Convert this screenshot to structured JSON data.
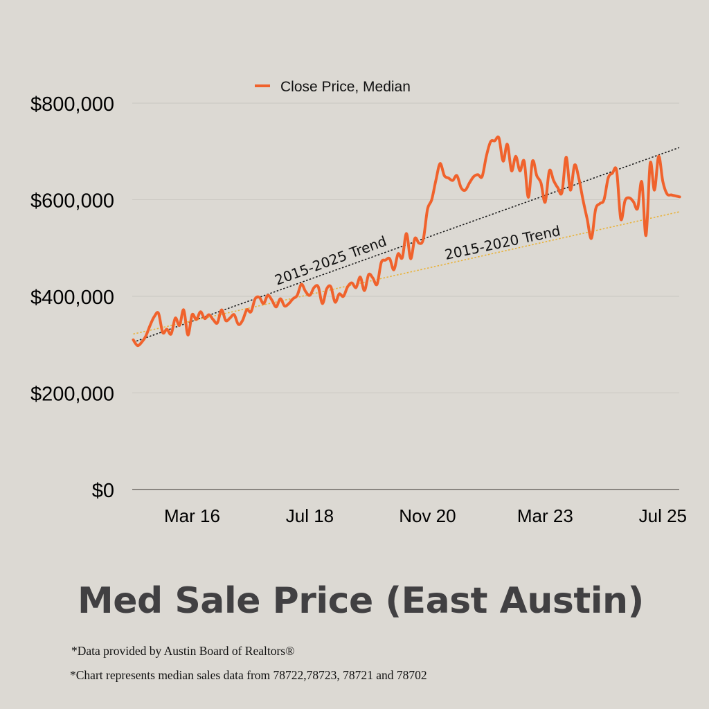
{
  "title": "Med Sale Price (East Austin)",
  "footnotes": [
    "*Data provided by Austin Board of Realtors®",
    "*Chart represents median sales data from 78722,78723, 78721 and 78702"
  ],
  "colors": {
    "background": "#dcd9d3",
    "series": "#f0622c",
    "trend_2015_2025": "#1a1a1a",
    "trend_2015_2020": "#e8b23a",
    "gridline": "#c9c6c0",
    "axis": "#6e6b66",
    "title": "#414042"
  },
  "chart_data": {
    "type": "line",
    "title": "Med Sale Price (East Austin)",
    "xlabel": "",
    "ylabel": "",
    "x_start": "Jan 2015",
    "x_end": "Jul 2025",
    "x_interval": "monthly",
    "ylim": [
      0,
      800000
    ],
    "yticks": [
      0,
      200000,
      400000,
      600000,
      800000
    ],
    "ytick_labels": [
      "$0",
      "$200,000",
      "$400,000",
      "$600,000",
      "$800,000"
    ],
    "xticks": [
      {
        "label": "Mar 16",
        "month_index": 14
      },
      {
        "label": "Jul 18",
        "month_index": 42
      },
      {
        "label": "Nov 20",
        "month_index": 70
      },
      {
        "label": "Mar 23",
        "month_index": 98
      },
      {
        "label": "Jul 25",
        "month_index": 126
      }
    ],
    "grid": true,
    "legend": {
      "position": "top-center",
      "entries": [
        "Close Price, Median"
      ]
    },
    "series": [
      {
        "name": "Close Price, Median",
        "values": [
          310000,
          298000,
          305000,
          318000,
          340000,
          358000,
          365000,
          325000,
          332000,
          322000,
          355000,
          340000,
          372000,
          320000,
          362000,
          352000,
          368000,
          354000,
          362000,
          352000,
          345000,
          372000,
          350000,
          355000,
          362000,
          342000,
          350000,
          372000,
          368000,
          395000,
          398000,
          385000,
          402000,
          392000,
          378000,
          395000,
          380000,
          385000,
          395000,
          402000,
          425000,
          410000,
          402000,
          418000,
          420000,
          385000,
          415000,
          420000,
          388000,
          405000,
          400000,
          420000,
          428000,
          418000,
          440000,
          412000,
          445000,
          438000,
          425000,
          470000,
          475000,
          478000,
          455000,
          488000,
          480000,
          530000,
          478000,
          520000,
          510000,
          518000,
          580000,
          600000,
          640000,
          675000,
          650000,
          645000,
          640000,
          650000,
          625000,
          620000,
          635000,
          648000,
          652000,
          648000,
          690000,
          720000,
          722000,
          728000,
          680000,
          715000,
          660000,
          690000,
          660000,
          680000,
          605000,
          680000,
          650000,
          635000,
          595000,
          660000,
          640000,
          625000,
          615000,
          688000,
          620000,
          672000,
          645000,
          600000,
          560000,
          520000,
          580000,
          592000,
          600000,
          645000,
          655000,
          660000,
          560000,
          598000,
          604000,
          596000,
          582000,
          637000,
          526000,
          676000,
          620000,
          690000,
          638000,
          612000,
          610000,
          608000,
          606000
        ]
      }
    ],
    "trendlines": [
      {
        "name": "2015-2025 Trend",
        "style": "dotted",
        "start_value": 305000,
        "end_value": 708000,
        "x_range": [
          "Jan 2015",
          "Dec 2025"
        ]
      },
      {
        "name": "2015-2020 Trend",
        "style": "dotted",
        "start_value": 322000,
        "end_value": 575000,
        "x_range": [
          "Jan 2015",
          "Dec 2025"
        ]
      }
    ],
    "annotations": [
      "2015-2025 Trend",
      "2015-2020 Trend"
    ]
  }
}
